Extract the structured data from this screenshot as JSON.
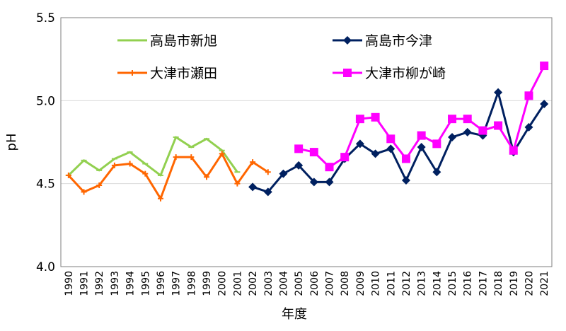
{
  "chart_data": {
    "type": "line",
    "xlabel": "年度",
    "ylabel": "pH",
    "ylim": [
      4.0,
      5.5
    ],
    "yticks": [
      "4.0",
      "4.5",
      "5.0",
      "5.5"
    ],
    "grid": "horizontal",
    "legend_position": "top",
    "categories": [
      "1990",
      "1991",
      "1992",
      "1993",
      "1994",
      "1995",
      "1996",
      "1997",
      "1998",
      "1999",
      "2000",
      "2001",
      "2002",
      "2003",
      "2004",
      "2005",
      "2006",
      "2007",
      "2008",
      "2009",
      "2010",
      "2011",
      "2012",
      "2013",
      "2014",
      "2015",
      "2016",
      "2017",
      "2018",
      "2019",
      "2020",
      "2021"
    ],
    "series": [
      {
        "name": "高島市新旭",
        "color": "#92D050",
        "marker": "dash",
        "values": [
          4.55,
          4.64,
          4.58,
          4.65,
          4.69,
          4.62,
          4.55,
          4.78,
          4.72,
          4.77,
          4.7,
          4.57,
          null,
          null,
          null,
          null,
          null,
          null,
          null,
          null,
          null,
          null,
          null,
          null,
          null,
          null,
          null,
          null,
          null,
          null,
          null,
          null
        ]
      },
      {
        "name": "高島市今津",
        "color": "#002060",
        "marker": "diamond",
        "values": [
          null,
          null,
          null,
          null,
          null,
          null,
          null,
          null,
          null,
          null,
          null,
          null,
          4.48,
          4.45,
          4.56,
          4.61,
          4.51,
          4.51,
          4.65,
          4.74,
          4.68,
          4.71,
          4.52,
          4.72,
          4.57,
          4.78,
          4.81,
          4.79,
          5.05,
          4.69,
          4.84,
          4.98
        ]
      },
      {
        "name": "大津市瀬田",
        "color": "#FF6600",
        "marker": "plus",
        "values": [
          4.55,
          4.45,
          4.49,
          4.61,
          4.62,
          4.56,
          4.41,
          4.66,
          4.66,
          4.54,
          4.68,
          4.5,
          4.63,
          4.57,
          null,
          null,
          null,
          null,
          null,
          null,
          null,
          null,
          null,
          null,
          null,
          null,
          null,
          null,
          null,
          null,
          null,
          null
        ]
      },
      {
        "name": "大津市柳が崎",
        "color": "#FF00FF",
        "marker": "square",
        "values": [
          null,
          null,
          null,
          null,
          null,
          null,
          null,
          null,
          null,
          null,
          null,
          null,
          null,
          null,
          null,
          4.71,
          4.69,
          4.6,
          4.66,
          4.89,
          4.9,
          4.77,
          4.65,
          4.79,
          4.74,
          4.89,
          4.89,
          4.82,
          4.85,
          4.7,
          5.03,
          5.21
        ]
      }
    ]
  }
}
